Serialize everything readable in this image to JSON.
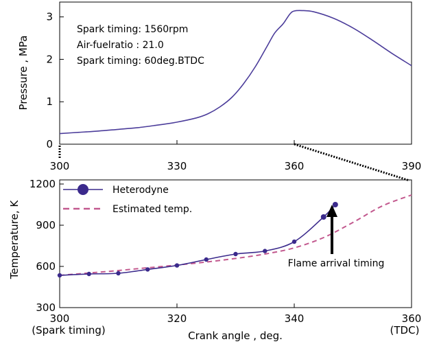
{
  "chart_data": [
    {
      "type": "line",
      "xlabel": "",
      "ylabel": "Pressure , MPa",
      "xlim": [
        300,
        390
      ],
      "ylim": [
        0,
        3.35
      ],
      "xticks": [
        "300",
        "330",
        "360",
        "390"
      ],
      "yticks": [
        "0",
        "1",
        "2",
        "3"
      ],
      "grid": false,
      "annotations": [
        "Spark timing: 1560rpm",
        "Air-fuelratio : 21.0",
        "Spark timing: 60deg.BTDC"
      ],
      "series": [
        {
          "name": "",
          "color": "#4b3c9a",
          "x": [
            300,
            305,
            310,
            315,
            320,
            325,
            330,
            335,
            338,
            341,
            344,
            347,
            350,
            353,
            355,
            357,
            358,
            359,
            360,
            362,
            365,
            370,
            375,
            380,
            385,
            390
          ],
          "y": [
            0.25,
            0.28,
            0.31,
            0.35,
            0.39,
            0.45,
            0.52,
            0.62,
            0.72,
            0.88,
            1.1,
            1.42,
            1.82,
            2.3,
            2.62,
            2.82,
            2.95,
            3.08,
            3.14,
            3.15,
            3.12,
            2.97,
            2.74,
            2.45,
            2.14,
            1.85
          ]
        }
      ]
    },
    {
      "type": "line",
      "xlabel": "Crank angle , deg.",
      "ylabel": "Temperature, K",
      "xlim": [
        300,
        360
      ],
      "ylim": [
        300,
        1230
      ],
      "xticks": [
        "300",
        "320",
        "340",
        "360"
      ],
      "yticks": [
        "300",
        "600",
        "900",
        "1200"
      ],
      "xtick_sublabels": {
        "300": "(Spark timing)",
        "360": "(TDC)"
      },
      "legend": "top-left",
      "grid": false,
      "annotations": [
        "Flame arrival timing"
      ],
      "series": [
        {
          "name": "Heterodyne",
          "color": "#3b2a8c",
          "markers": true,
          "x": [
            300,
            305,
            310,
            315,
            320,
            325,
            330,
            335,
            340,
            345,
            347
          ],
          "y": [
            535,
            545,
            550,
            578,
            607,
            650,
            690,
            712,
            780,
            960,
            1050
          ]
        },
        {
          "name": "Estimated temp.",
          "color": "#c2588e",
          "dashed": true,
          "x": [
            300,
            305,
            310,
            315,
            320,
            325,
            330,
            335,
            340,
            345,
            350,
            355,
            360
          ],
          "y": [
            535,
            552,
            570,
            590,
            610,
            632,
            658,
            690,
            735,
            810,
            920,
            1040,
            1120
          ]
        }
      ]
    }
  ]
}
